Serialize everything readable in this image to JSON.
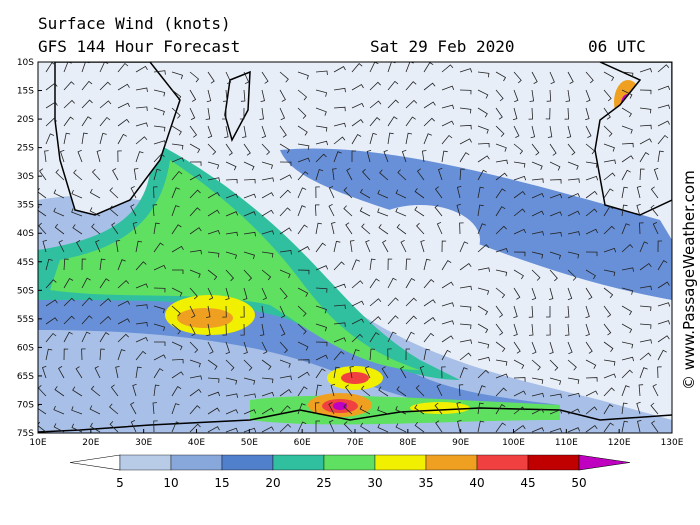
{
  "header": {
    "title": "Surface Wind (knots)",
    "subtitle": "GFS 144 Hour Forecast",
    "date": "Sat 29 Feb 2020",
    "time": "06 UTC"
  },
  "map": {
    "lat_labels": [
      "10S",
      "15S",
      "20S",
      "25S",
      "30S",
      "35S",
      "40S",
      "45S",
      "50S",
      "55S",
      "60S",
      "65S",
      "70S",
      "75S"
    ],
    "lon_labels": [
      "10E",
      "20E",
      "30E",
      "40E",
      "50E",
      "60E",
      "70E",
      "80E",
      "90E",
      "100E",
      "110E",
      "120E",
      "130E"
    ]
  },
  "colorbar": {
    "labels": [
      5,
      10,
      15,
      20,
      25,
      30,
      35,
      40,
      45,
      50
    ]
  },
  "watermark": "© www.PassageWeather.com"
}
